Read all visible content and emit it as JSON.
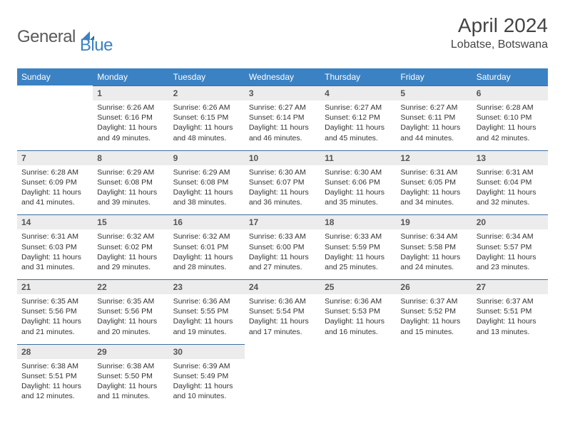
{
  "logo": {
    "general": "General",
    "blue": "Blue"
  },
  "title": "April 2024",
  "location": "Lobatse, Botswana",
  "colors": {
    "header_bg": "#3b82c4",
    "header_text": "#ffffff",
    "daynum_bg": "#ececec",
    "daynum_border": "#3b6fa0",
    "body_text": "#333333",
    "logo_gray": "#5a5a5a",
    "logo_blue": "#3b82c4"
  },
  "weekdays": [
    "Sunday",
    "Monday",
    "Tuesday",
    "Wednesday",
    "Thursday",
    "Friday",
    "Saturday"
  ],
  "weeks": [
    [
      null,
      {
        "n": "1",
        "sunrise": "6:26 AM",
        "sunset": "6:16 PM",
        "daylight": "11 hours and 49 minutes."
      },
      {
        "n": "2",
        "sunrise": "6:26 AM",
        "sunset": "6:15 PM",
        "daylight": "11 hours and 48 minutes."
      },
      {
        "n": "3",
        "sunrise": "6:27 AM",
        "sunset": "6:14 PM",
        "daylight": "11 hours and 46 minutes."
      },
      {
        "n": "4",
        "sunrise": "6:27 AM",
        "sunset": "6:12 PM",
        "daylight": "11 hours and 45 minutes."
      },
      {
        "n": "5",
        "sunrise": "6:27 AM",
        "sunset": "6:11 PM",
        "daylight": "11 hours and 44 minutes."
      },
      {
        "n": "6",
        "sunrise": "6:28 AM",
        "sunset": "6:10 PM",
        "daylight": "11 hours and 42 minutes."
      }
    ],
    [
      {
        "n": "7",
        "sunrise": "6:28 AM",
        "sunset": "6:09 PM",
        "daylight": "11 hours and 41 minutes."
      },
      {
        "n": "8",
        "sunrise": "6:29 AM",
        "sunset": "6:08 PM",
        "daylight": "11 hours and 39 minutes."
      },
      {
        "n": "9",
        "sunrise": "6:29 AM",
        "sunset": "6:08 PM",
        "daylight": "11 hours and 38 minutes."
      },
      {
        "n": "10",
        "sunrise": "6:30 AM",
        "sunset": "6:07 PM",
        "daylight": "11 hours and 36 minutes."
      },
      {
        "n": "11",
        "sunrise": "6:30 AM",
        "sunset": "6:06 PM",
        "daylight": "11 hours and 35 minutes."
      },
      {
        "n": "12",
        "sunrise": "6:31 AM",
        "sunset": "6:05 PM",
        "daylight": "11 hours and 34 minutes."
      },
      {
        "n": "13",
        "sunrise": "6:31 AM",
        "sunset": "6:04 PM",
        "daylight": "11 hours and 32 minutes."
      }
    ],
    [
      {
        "n": "14",
        "sunrise": "6:31 AM",
        "sunset": "6:03 PM",
        "daylight": "11 hours and 31 minutes."
      },
      {
        "n": "15",
        "sunrise": "6:32 AM",
        "sunset": "6:02 PM",
        "daylight": "11 hours and 29 minutes."
      },
      {
        "n": "16",
        "sunrise": "6:32 AM",
        "sunset": "6:01 PM",
        "daylight": "11 hours and 28 minutes."
      },
      {
        "n": "17",
        "sunrise": "6:33 AM",
        "sunset": "6:00 PM",
        "daylight": "11 hours and 27 minutes."
      },
      {
        "n": "18",
        "sunrise": "6:33 AM",
        "sunset": "5:59 PM",
        "daylight": "11 hours and 25 minutes."
      },
      {
        "n": "19",
        "sunrise": "6:34 AM",
        "sunset": "5:58 PM",
        "daylight": "11 hours and 24 minutes."
      },
      {
        "n": "20",
        "sunrise": "6:34 AM",
        "sunset": "5:57 PM",
        "daylight": "11 hours and 23 minutes."
      }
    ],
    [
      {
        "n": "21",
        "sunrise": "6:35 AM",
        "sunset": "5:56 PM",
        "daylight": "11 hours and 21 minutes."
      },
      {
        "n": "22",
        "sunrise": "6:35 AM",
        "sunset": "5:56 PM",
        "daylight": "11 hours and 20 minutes."
      },
      {
        "n": "23",
        "sunrise": "6:36 AM",
        "sunset": "5:55 PM",
        "daylight": "11 hours and 19 minutes."
      },
      {
        "n": "24",
        "sunrise": "6:36 AM",
        "sunset": "5:54 PM",
        "daylight": "11 hours and 17 minutes."
      },
      {
        "n": "25",
        "sunrise": "6:36 AM",
        "sunset": "5:53 PM",
        "daylight": "11 hours and 16 minutes."
      },
      {
        "n": "26",
        "sunrise": "6:37 AM",
        "sunset": "5:52 PM",
        "daylight": "11 hours and 15 minutes."
      },
      {
        "n": "27",
        "sunrise": "6:37 AM",
        "sunset": "5:51 PM",
        "daylight": "11 hours and 13 minutes."
      }
    ],
    [
      {
        "n": "28",
        "sunrise": "6:38 AM",
        "sunset": "5:51 PM",
        "daylight": "11 hours and 12 minutes."
      },
      {
        "n": "29",
        "sunrise": "6:38 AM",
        "sunset": "5:50 PM",
        "daylight": "11 hours and 11 minutes."
      },
      {
        "n": "30",
        "sunrise": "6:39 AM",
        "sunset": "5:49 PM",
        "daylight": "11 hours and 10 minutes."
      },
      null,
      null,
      null,
      null
    ]
  ],
  "labels": {
    "sunrise": "Sunrise:",
    "sunset": "Sunset:",
    "daylight": "Daylight:"
  }
}
